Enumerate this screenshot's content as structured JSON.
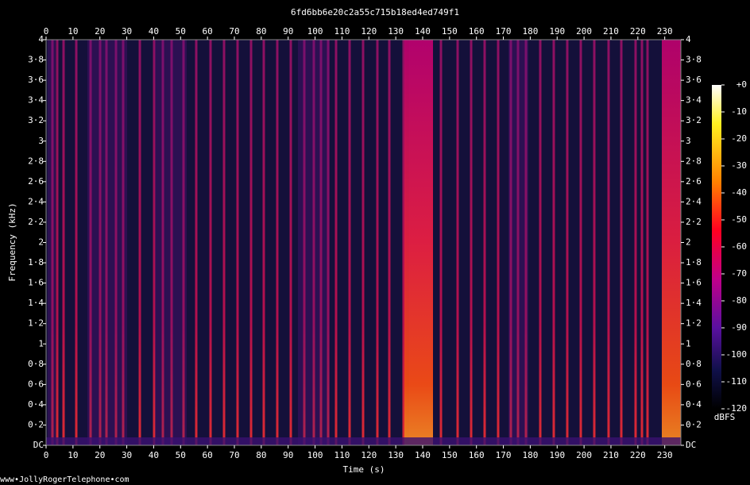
{
  "chart_data": {
    "type": "spectrogram",
    "title": "6fd6bb6e20c2a55c715b18ed4ed749f1",
    "xlabel": "Time (s)",
    "ylabel": "Frequency (kHz)",
    "xlim": [
      0,
      236
    ],
    "xticks": [
      0,
      10,
      20,
      30,
      40,
      50,
      60,
      70,
      80,
      90,
      100,
      110,
      120,
      130,
      140,
      150,
      160,
      170,
      180,
      190,
      200,
      210,
      220,
      230
    ],
    "ylim": [
      0,
      4
    ],
    "yticks": [
      {
        "value": 0,
        "label": "DC"
      },
      {
        "value": 0.2,
        "label": "0·2"
      },
      {
        "value": 0.4,
        "label": "0·4"
      },
      {
        "value": 0.6,
        "label": "0·6"
      },
      {
        "value": 0.8,
        "label": "0·8"
      },
      1,
      {
        "value": 1.2,
        "label": "1·2"
      },
      {
        "value": 1.4,
        "label": "1·4"
      },
      {
        "value": 1.6,
        "label": "1·6"
      },
      {
        "value": 1.8,
        "label": "1·8"
      },
      2,
      {
        "value": 2.2,
        "label": "2·2"
      },
      {
        "value": 2.4,
        "label": "2·4"
      },
      {
        "value": 2.6,
        "label": "2·6"
      },
      {
        "value": 2.8,
        "label": "2·8"
      },
      3,
      {
        "value": 3.2,
        "label": "3·2"
      },
      {
        "value": 3.4,
        "label": "3·4"
      },
      {
        "value": 3.6,
        "label": "3·6"
      },
      {
        "value": 3.8,
        "label": "3·8"
      },
      4
    ],
    "colorbar": {
      "label": "dBFS",
      "lim": [
        -120,
        0
      ],
      "ticks": [
        {
          "value": 0,
          "label": "+0"
        },
        -10,
        -20,
        -30,
        -40,
        -50,
        -60,
        -70,
        -80,
        -90,
        -100,
        -110,
        -120
      ]
    },
    "footer": "www•JollyRogerTelephone•com"
  }
}
